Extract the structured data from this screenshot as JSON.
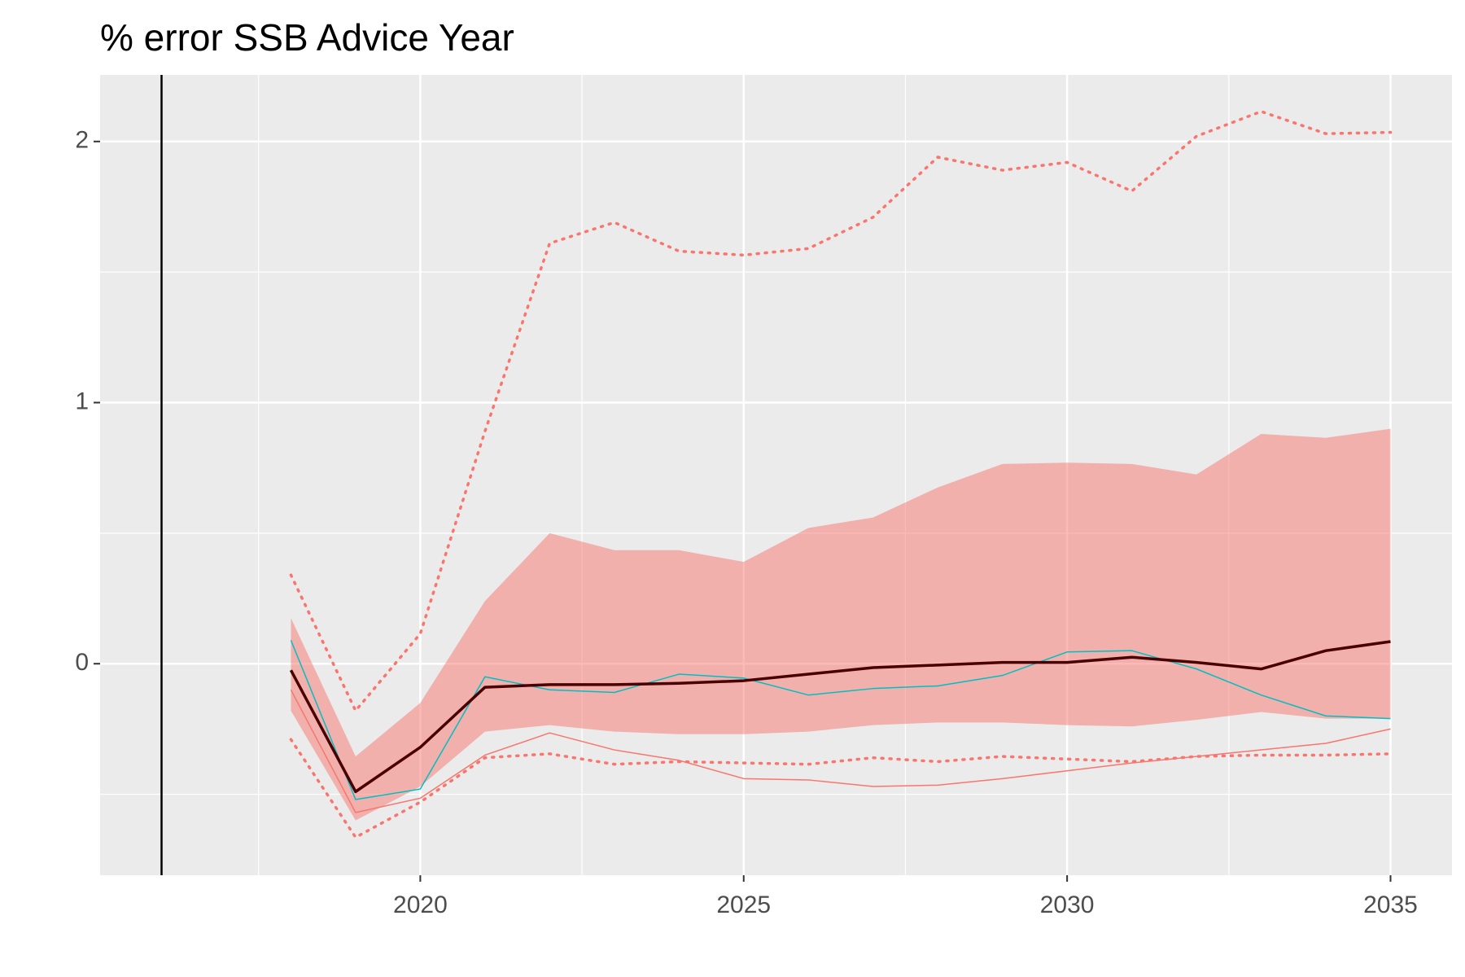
{
  "chart_data": {
    "type": "line",
    "title": "% error SSB Advice Year",
    "x": [
      2018,
      2019,
      2020,
      2021,
      2022,
      2023,
      2024,
      2025,
      2026,
      2027,
      2028,
      2029,
      2030,
      2031,
      2032,
      2033,
      2034,
      2035
    ],
    "band": {
      "color": "#F8766D",
      "opacity": 0.5,
      "upper": [
        0.175,
        -0.355,
        -0.15,
        0.24,
        0.5,
        0.435,
        0.435,
        0.39,
        0.52,
        0.56,
        0.675,
        0.765,
        0.77,
        0.765,
        0.725,
        0.88,
        0.865,
        0.9
      ],
      "lower": [
        -0.18,
        -0.6,
        -0.47,
        -0.26,
        -0.235,
        -0.26,
        -0.27,
        -0.27,
        -0.26,
        -0.235,
        -0.225,
        -0.225,
        -0.235,
        -0.24,
        -0.215,
        -0.185,
        -0.21,
        -0.21
      ]
    },
    "series": [
      {
        "color": "#F8766D",
        "linetype": "dotted",
        "linewidth": 3.5,
        "values": [
          0.34,
          -0.18,
          0.115,
          0.89,
          1.61,
          1.69,
          1.58,
          1.565,
          1.59,
          1.71,
          1.94,
          1.89,
          1.92,
          1.81,
          2.02,
          2.115,
          2.03,
          2.035
        ]
      },
      {
        "color": "#F8766D",
        "linetype": "dotted",
        "linewidth": 3.5,
        "values": [
          -0.29,
          -0.665,
          -0.53,
          -0.36,
          -0.345,
          -0.385,
          -0.375,
          -0.38,
          -0.385,
          -0.36,
          -0.375,
          -0.355,
          -0.365,
          -0.375,
          -0.355,
          -0.35,
          -0.35,
          -0.345
        ]
      },
      {
        "color": "#F8766D",
        "linetype": "solid",
        "linewidth": 1.5,
        "values": [
          -0.1,
          -0.57,
          -0.515,
          -0.35,
          -0.265,
          -0.33,
          -0.37,
          -0.44,
          -0.445,
          -0.47,
          -0.465,
          -0.44,
          -0.41,
          -0.38,
          -0.355,
          -0.33,
          -0.305,
          -0.25
        ]
      },
      {
        "color": "#00BFC4",
        "linetype": "solid",
        "linewidth": 1.5,
        "values": [
          0.09,
          -0.52,
          -0.48,
          -0.05,
          -0.1,
          -0.11,
          -0.04,
          -0.055,
          -0.12,
          -0.095,
          -0.085,
          -0.045,
          0.045,
          0.05,
          -0.02,
          -0.12,
          -0.2,
          -0.21
        ]
      },
      {
        "color": "#4a0000",
        "linetype": "solid",
        "linewidth": 3.5,
        "values": [
          -0.025,
          -0.49,
          -0.32,
          -0.09,
          -0.08,
          -0.08,
          -0.075,
          -0.065,
          -0.04,
          -0.015,
          -0.005,
          0.005,
          0.005,
          0.025,
          0.005,
          -0.02,
          0.05,
          0.085
        ]
      }
    ],
    "vlines": [
      2016
    ],
    "xlim": [
      2015.05,
      2035.95
    ],
    "ylim": [
      -0.81,
      2.255
    ],
    "xticks": [
      2020,
      2025,
      2030,
      2035
    ],
    "yticks": [
      0,
      1,
      2
    ],
    "xminorticks": [
      2017.5,
      2022.5,
      2027.5,
      2032.5
    ],
    "yminorticks": [
      -0.5,
      0.5,
      1.5
    ],
    "grid": true
  }
}
